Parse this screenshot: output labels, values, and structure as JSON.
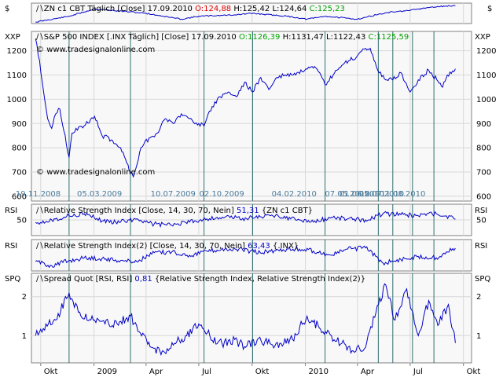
{
  "colors": {
    "background": "#ffffff",
    "panel_bg": "#f8f8f8",
    "grid": "#d8d8d8",
    "frame": "#808080",
    "vline": "#2f6f6f",
    "series": "#0000c8",
    "date_label": "#4a7a9a",
    "open": "#e00000",
    "close": "#00a000",
    "text": "#000000"
  },
  "header": {
    "icon_label": "ZN c1 CBT Täglich [Close]",
    "icon_date": "17.09.2010",
    "icon_open": "O:124,88",
    "icon_high": "H:125,42",
    "icon_low": "L:124,64",
    "icon_close": "C:125,23",
    "icon_unit": "$"
  },
  "main": {
    "label": "S&P 500 INDEX [.INX Täglich] [Close]",
    "date": "17.09.2010",
    "open": "O:1126,39",
    "high": "H:1131,47",
    "low": "L:1122,43",
    "close": "C:1125,59",
    "unit": "XXP",
    "url": "www.tradesignalonline.com"
  },
  "rsi1": {
    "label": "Relative Strength Index [Close, 14, 30, 70, Nein]",
    "value": "51,31",
    "source": "{ZN c1 CBT}",
    "unit": "RSI"
  },
  "rsi2": {
    "label": "Relative Strength Index(2) [Close, 14, 30, 70, Nein]",
    "value": "63,43",
    "source": "{.INX}",
    "unit": "RSI"
  },
  "spread": {
    "label": "Spread Quot [RSI, RSI]",
    "value": "0,81",
    "source": "{Relative Strength Index, Relative Strength Index(2)}",
    "unit": "SPQ"
  },
  "chart_data": [
    {
      "type": "line",
      "name": "ZN c1 CBT",
      "x": [
        "2008-09-22",
        "2008-11-19",
        "2009-01-02",
        "2009-03-05",
        "2009-04-01",
        "2009-06-01",
        "2009-07-01",
        "2009-09-01",
        "2009-10-02",
        "2009-12-01",
        "2010-01-04",
        "2010-02-04",
        "2010-04-01",
        "2010-05-03",
        "2010-06-01",
        "2010-07-01",
        "2010-08-02",
        "2010-09-01",
        "2010-09-17"
      ],
      "y": [
        114,
        118,
        123,
        121,
        120,
        116,
        118,
        119,
        120,
        118,
        116,
        118,
        116,
        119,
        121,
        122,
        124,
        125,
        125.23
      ]
    },
    {
      "type": "line",
      "name": "S&P 500 INDEX",
      "ylim": [
        580,
        1280
      ],
      "yticks": [
        600,
        700,
        800,
        900,
        1000,
        1100,
        1200
      ],
      "x": [
        "2008-09-22",
        "2008-09-29",
        "2008-10-06",
        "2008-10-13",
        "2008-10-20",
        "2008-10-27",
        "2008-11-03",
        "2008-11-19",
        "2008-11-24",
        "2008-12-01",
        "2008-12-15",
        "2009-01-02",
        "2009-01-15",
        "2009-02-02",
        "2009-02-16",
        "2009-03-05",
        "2009-03-10",
        "2009-03-23",
        "2009-04-06",
        "2009-04-20",
        "2009-05-04",
        "2009-05-18",
        "2009-06-01",
        "2009-06-15",
        "2009-07-01",
        "2009-07-10",
        "2009-07-24",
        "2009-08-07",
        "2009-08-21",
        "2009-09-04",
        "2009-09-18",
        "2009-10-02",
        "2009-10-16",
        "2009-10-30",
        "2009-11-13",
        "2009-11-27",
        "2009-12-11",
        "2009-12-31",
        "2010-01-19",
        "2010-02-04",
        "2010-02-18",
        "2010-03-05",
        "2010-03-19",
        "2010-04-01",
        "2010-04-15",
        "2010-04-23",
        "2010-05-06",
        "2010-05-20",
        "2010-06-01",
        "2010-06-15",
        "2010-07-01",
        "2010-07-15",
        "2010-08-02",
        "2010-08-16",
        "2010-08-26",
        "2010-09-03",
        "2010-09-17"
      ],
      "y": [
        1250,
        1160,
        1030,
        920,
        880,
        940,
        960,
        760,
        860,
        880,
        890,
        930,
        850,
        830,
        800,
        700,
        680,
        800,
        840,
        860,
        920,
        900,
        940,
        920,
        900,
        890,
        970,
        1010,
        1030,
        1010,
        1070,
        1030,
        1090,
        1040,
        1090,
        1100,
        1100,
        1120,
        1130,
        1060,
        1100,
        1140,
        1160,
        1180,
        1210,
        1210,
        1120,
        1080,
        1080,
        1110,
        1030,
        1080,
        1120,
        1080,
        1050,
        1100,
        1125.59
      ]
    },
    {
      "type": "line",
      "name": "Relative Strength Index",
      "yticks": [
        50
      ],
      "ylim": [
        20,
        80
      ],
      "x": [
        "2008-09-22",
        "2008-10-20",
        "2008-11-19",
        "2008-12-15",
        "2009-01-15",
        "2009-02-16",
        "2009-03-16",
        "2009-04-15",
        "2009-05-15",
        "2009-06-15",
        "2009-07-15",
        "2009-08-15",
        "2009-09-15",
        "2009-10-15",
        "2009-11-15",
        "2009-12-15",
        "2010-01-15",
        "2010-02-15",
        "2010-03-15",
        "2010-04-15",
        "2010-05-15",
        "2010-06-15",
        "2010-07-15",
        "2010-08-15",
        "2010-09-17"
      ],
      "y": [
        45,
        50,
        58,
        62,
        48,
        46,
        52,
        42,
        40,
        46,
        52,
        55,
        53,
        56,
        58,
        50,
        46,
        55,
        52,
        50,
        62,
        60,
        58,
        62,
        51.31
      ]
    },
    {
      "type": "line",
      "name": "Relative Strength Index(2)",
      "ylim": [
        20,
        80
      ],
      "x": [
        "2008-09-22",
        "2008-10-20",
        "2008-11-19",
        "2008-12-15",
        "2009-01-15",
        "2009-02-16",
        "2009-03-16",
        "2009-04-15",
        "2009-05-15",
        "2009-06-15",
        "2009-07-15",
        "2009-08-15",
        "2009-09-15",
        "2009-10-15",
        "2009-11-15",
        "2009-12-15",
        "2010-01-15",
        "2010-02-15",
        "2010-03-15",
        "2010-04-15",
        "2010-05-15",
        "2010-06-15",
        "2010-07-15",
        "2010-08-15",
        "2010-09-17"
      ],
      "y": [
        38,
        30,
        40,
        45,
        44,
        40,
        38,
        55,
        56,
        50,
        58,
        62,
        60,
        55,
        60,
        62,
        58,
        50,
        62,
        64,
        35,
        42,
        48,
        45,
        63.43
      ]
    },
    {
      "type": "line",
      "name": "Spread Quot",
      "yticks": [
        1,
        2
      ],
      "ylim": [
        0.3,
        2.6
      ],
      "x": [
        "2008-09-22",
        "2008-10-10",
        "2008-10-27",
        "2008-11-19",
        "2008-12-05",
        "2009-01-02",
        "2009-01-20",
        "2009-02-10",
        "2009-03-05",
        "2009-03-20",
        "2009-04-10",
        "2009-05-01",
        "2009-05-20",
        "2009-06-10",
        "2009-07-01",
        "2009-07-20",
        "2009-08-10",
        "2009-09-01",
        "2009-09-20",
        "2009-10-10",
        "2009-11-01",
        "2009-11-20",
        "2009-12-10",
        "2010-01-04",
        "2010-01-25",
        "2010-02-15",
        "2010-03-05",
        "2010-03-25",
        "2010-04-15",
        "2010-05-03",
        "2010-05-20",
        "2010-06-05",
        "2010-06-25",
        "2010-07-15",
        "2010-08-02",
        "2010-08-20",
        "2010-09-05",
        "2010-09-17"
      ],
      "y": [
        1.0,
        1.3,
        1.4,
        2.1,
        1.6,
        1.4,
        1.3,
        1.3,
        1.5,
        1.1,
        0.7,
        0.6,
        0.8,
        1.0,
        1.3,
        1.0,
        0.8,
        0.9,
        0.7,
        0.9,
        0.8,
        0.8,
        0.9,
        1.5,
        1.2,
        1.0,
        0.8,
        0.6,
        0.7,
        1.6,
        2.3,
        1.4,
        2.2,
        1.0,
        1.9,
        1.3,
        1.8,
        0.81
      ]
    }
  ],
  "xaxis": {
    "ticks": [
      {
        "label": "Okt",
        "date": "2008-10-01"
      },
      {
        "label": "2009",
        "date": "2009-01-01"
      },
      {
        "label": "Apr",
        "date": "2009-04-01"
      },
      {
        "label": "Jul",
        "date": "2009-07-01"
      },
      {
        "label": "Okt",
        "date": "2009-10-01"
      },
      {
        "label": "2010",
        "date": "2010-01-01"
      },
      {
        "label": "Apr",
        "date": "2010-04-01"
      },
      {
        "label": "Jul",
        "date": "2010-07-01"
      },
      {
        "label": "Okt",
        "date": "2010-10-01"
      }
    ]
  },
  "markers": [
    {
      "label": "19.11.2008",
      "date": "2008-11-19"
    },
    {
      "label": "05.03.2009",
      "date": "2009-03-05"
    },
    {
      "label": "10.07.2009",
      "date": "2009-07-10"
    },
    {
      "label": "02.10.2009",
      "date": "2009-10-02"
    },
    {
      "label": "04.02.2010",
      "date": "2010-02-04"
    },
    {
      "label": "07.05.2010",
      "date": "2010-05-07"
    },
    {
      "label": "01.06.2010",
      "date": "2010-06-01"
    },
    {
      "label": "05.07.2010",
      "date": "2010-07-05"
    },
    {
      "label": "11.08.2010",
      "date": "2010-08-11"
    }
  ]
}
